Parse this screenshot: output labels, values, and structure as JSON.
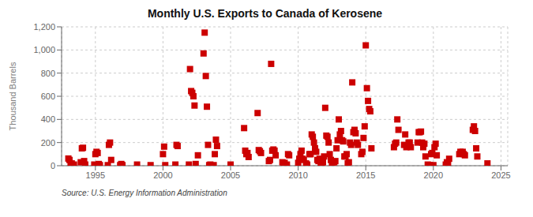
{
  "chart_data": {
    "type": "scatter",
    "title": "Monthly U.S. Exports to Canada of Kerosene",
    "ylabel": "Thousand Barrels",
    "annotation": "Source: U.S. Energy Information Administration",
    "color": "#cc0000",
    "marker": "square",
    "grid": true,
    "xlim": [
      1992.5,
      2025.5
    ],
    "ylim": [
      0,
      1200
    ],
    "xticks": [
      1995,
      2000,
      2005,
      2010,
      2015,
      2020,
      2025
    ],
    "yticks": [
      0,
      200,
      400,
      600,
      800,
      {
        "value": 1000,
        "label": "1,000"
      },
      {
        "value": 1200,
        "label": "1,200"
      }
    ],
    "x": [
      1993.0,
      1993.083,
      1993.167,
      1993.25,
      1993.417,
      1993.917,
      1994.0,
      1994.083,
      1994.167,
      1994.25,
      1994.917,
      1995.0,
      1995.083,
      1995.167,
      1995.25,
      1995.333,
      1995.917,
      1996.0,
      1996.083,
      1996.167,
      1996.833,
      1996.917,
      1997.0,
      1998.083,
      1999.083,
      2000.0,
      2000.083,
      2000.167,
      2000.917,
      2001.0,
      2001.083,
      2001.917,
      2002.0,
      2002.083,
      2002.167,
      2002.25,
      2002.333,
      2002.417,
      2002.583,
      2003.0,
      2003.083,
      2003.167,
      2003.25,
      2003.333,
      2003.417,
      2003.5,
      2003.75,
      2003.833,
      2003.917,
      2004.0,
      2005.0,
      2006.0,
      2006.083,
      2006.167,
      2006.25,
      2006.333,
      2007.0,
      2007.083,
      2007.167,
      2007.25,
      2007.833,
      2007.917,
      2008.0,
      2008.083,
      2008.167,
      2008.25,
      2008.333,
      2008.833,
      2008.917,
      2009.0,
      2009.167,
      2009.25,
      2009.333,
      2010.0,
      2010.083,
      2010.167,
      2010.25,
      2010.333,
      2010.417,
      2010.583,
      2010.667,
      2010.833,
      2010.917,
      2011.0,
      2011.083,
      2011.167,
      2011.25,
      2011.333,
      2011.417,
      2011.5,
      2011.583,
      2011.667,
      2011.75,
      2011.833,
      2011.917,
      2012.0,
      2012.083,
      2012.167,
      2012.25,
      2012.333,
      2012.417,
      2012.5,
      2012.583,
      2012.667,
      2012.75,
      2012.833,
      2012.917,
      2013.0,
      2013.083,
      2013.167,
      2013.25,
      2013.333,
      2013.417,
      2013.5,
      2013.583,
      2013.667,
      2013.75,
      2013.833,
      2013.917,
      2014.0,
      2014.083,
      2014.167,
      2014.25,
      2014.333,
      2014.417,
      2014.667,
      2014.75,
      2014.833,
      2014.917,
      2015.0,
      2015.083,
      2015.167,
      2015.25,
      2015.333,
      2015.417,
      2017.083,
      2017.167,
      2017.25,
      2017.333,
      2017.417,
      2017.833,
      2017.917,
      2018.0,
      2018.083,
      2018.167,
      2018.25,
      2018.333,
      2018.833,
      2018.917,
      2019.0,
      2019.083,
      2019.167,
      2019.25,
      2019.333,
      2019.417,
      2019.583,
      2019.75,
      2019.833,
      2019.917,
      2020.0,
      2020.083,
      2020.167,
      2020.25,
      2020.917,
      2021.0,
      2021.083,
      2021.167,
      2021.917,
      2022.0,
      2022.083,
      2022.167,
      2022.25,
      2022.333,
      2022.917,
      2023.0,
      2023.083,
      2023.167,
      2023.25,
      2024.0
    ],
    "values": [
      62,
      50,
      5,
      20,
      10,
      30,
      150,
      155,
      40,
      10,
      10,
      100,
      120,
      110,
      15,
      5,
      5,
      180,
      200,
      50,
      5,
      15,
      5,
      10,
      5,
      100,
      165,
      5,
      10,
      180,
      170,
      10,
      835,
      645,
      630,
      600,
      520,
      15,
      90,
      970,
      1150,
      775,
      510,
      180,
      5,
      10,
      5,
      100,
      225,
      170,
      10,
      325,
      130,
      100,
      110,
      75,
      455,
      135,
      125,
      110,
      40,
      50,
      880,
      130,
      140,
      130,
      90,
      30,
      10,
      25,
      10,
      100,
      90,
      25,
      60,
      100,
      130,
      60,
      50,
      20,
      10,
      100,
      100,
      270,
      250,
      200,
      150,
      120,
      50,
      40,
      60,
      20,
      5,
      30,
      80,
      500,
      260,
      250,
      200,
      100,
      50,
      10,
      30,
      30,
      40,
      150,
      220,
      400,
      270,
      300,
      220,
      210,
      80,
      80,
      100,
      20,
      30,
      200,
      180,
      720,
      290,
      310,
      280,
      200,
      180,
      100,
      120,
      240,
      340,
      1040,
      670,
      560,
      490,
      470,
      150,
      160,
      190,
      200,
      400,
      310,
      180,
      270,
      160,
      175,
      200,
      200,
      160,
      200,
      290,
      290,
      295,
      200,
      160,
      190,
      80,
      10,
      5,
      100,
      110,
      5,
      160,
      190,
      90,
      10,
      30,
      10,
      60,
      100,
      120,
      110,
      120,
      100,
      90,
      310,
      340,
      300,
      150,
      80,
      20
    ]
  }
}
